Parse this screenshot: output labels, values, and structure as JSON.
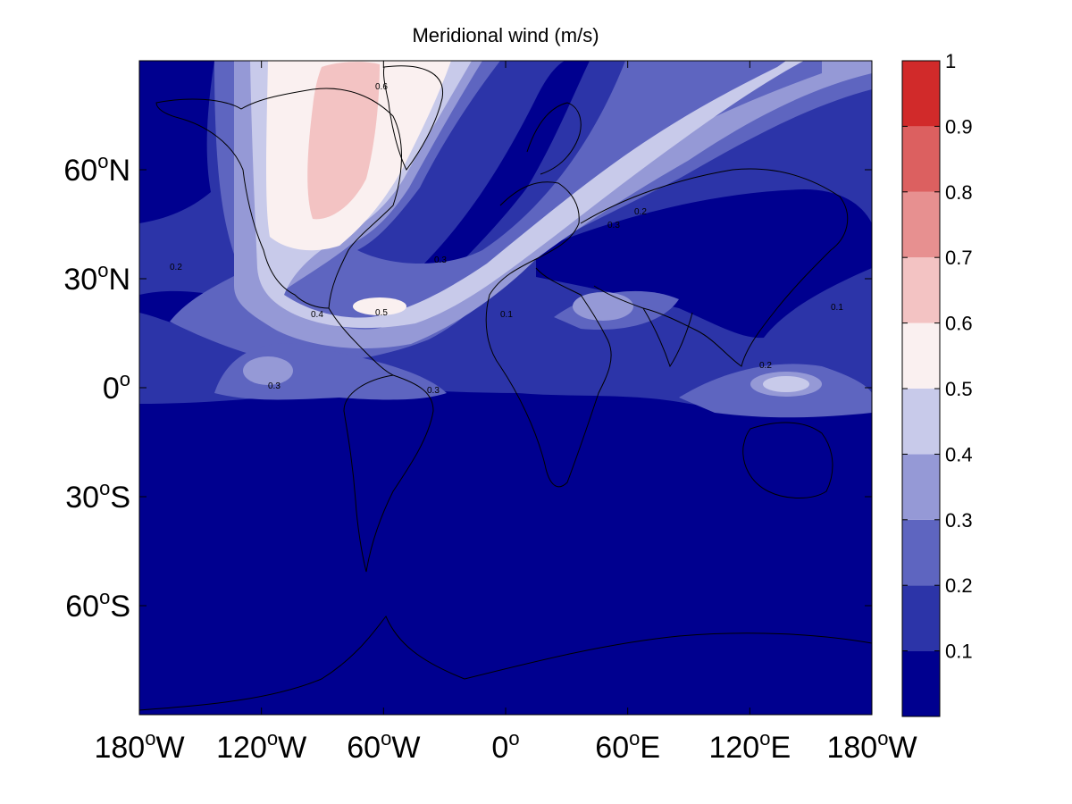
{
  "map": {
    "title": "Meridional wind (m/s)",
    "projection": "equirectangular",
    "lon_range": [
      -180,
      180
    ],
    "lat_range": [
      -90,
      90
    ],
    "lon_ticks": [
      {
        "lon": -180,
        "num": "180",
        "hemi": "W"
      },
      {
        "lon": -120,
        "num": "120",
        "hemi": "W"
      },
      {
        "lon": -60,
        "num": "60",
        "hemi": "W"
      },
      {
        "lon": 0,
        "num": "0",
        "hemi": ""
      },
      {
        "lon": 60,
        "num": "60",
        "hemi": "E"
      },
      {
        "lon": 120,
        "num": "120",
        "hemi": "E"
      },
      {
        "lon": 180,
        "num": "180",
        "hemi": "W"
      }
    ],
    "lat_ticks": [
      {
        "lat": 60,
        "num": "60",
        "hemi": "N"
      },
      {
        "lat": 30,
        "num": "30",
        "hemi": "N"
      },
      {
        "lat": 0,
        "num": "0",
        "hemi": ""
      },
      {
        "lat": -30,
        "num": "30",
        "hemi": "S"
      },
      {
        "lat": -60,
        "num": "60",
        "hemi": "S"
      }
    ],
    "background_color": "#00008F",
    "coastline_color": "#000000"
  },
  "colorbar": {
    "labels": [
      "0.1",
      "0.2",
      "0.3",
      "0.4",
      "0.5",
      "0.6",
      "0.7",
      "0.8",
      "0.9",
      "1"
    ],
    "levels": [
      0.0,
      0.1,
      0.2,
      0.3,
      0.4,
      0.5,
      0.6,
      0.7,
      0.8,
      0.9,
      1.0
    ],
    "colors": [
      "#00008F",
      "#2C34A8",
      "#5E65C0",
      "#9599D6",
      "#C8CAEA",
      "#FAF0F0",
      "#F3C3C3",
      "#E79090",
      "#DC6060",
      "#D12A2A"
    ]
  },
  "contour_labels": [
    "0.1",
    "0.2",
    "0.3",
    "0.4",
    "0.5",
    "0.6"
  ]
}
